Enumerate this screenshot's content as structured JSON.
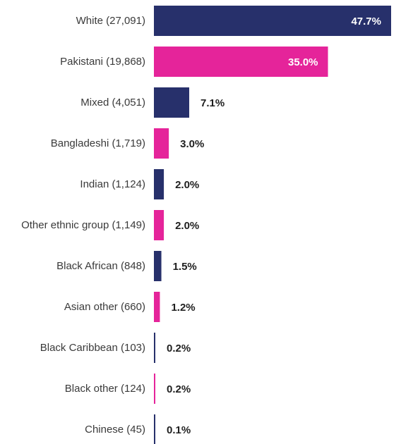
{
  "chart_data": {
    "type": "bar",
    "orientation": "horizontal",
    "categories": [
      "White (27,091)",
      "Pakistani (19,868)",
      "Mixed (4,051)",
      "Bangladeshi (1,719)",
      "Indian (1,124)",
      "Other ethnic group (1,149)",
      "Black African (848)",
      "Asian other (660)",
      "Black Caribbean (103)",
      "Black other (124)",
      "Chinese (45)"
    ],
    "values": [
      47.7,
      35.0,
      7.1,
      3.0,
      2.0,
      2.0,
      1.5,
      1.2,
      0.2,
      0.2,
      0.1
    ],
    "value_labels": [
      "47.7%",
      "35.0%",
      "7.1%",
      "3.0%",
      "2.0%",
      "2.0%",
      "1.5%",
      "1.2%",
      "0.2%",
      "0.2%",
      "0.1%"
    ],
    "bar_colors": [
      "#27306b",
      "#e5249a",
      "#27306b",
      "#e5249a",
      "#27306b",
      "#e5249a",
      "#27306b",
      "#e5249a",
      "#27306b",
      "#e5249a",
      "#27306b"
    ],
    "colors": {
      "navy": "#27306b",
      "magenta": "#e5249a",
      "label_text": "#3a3a3a",
      "value_text_outside": "#1f1f1f",
      "value_text_inside": "#ffffff"
    },
    "title": "",
    "xlabel": "",
    "ylabel": "",
    "xlim": [
      0,
      47.7
    ],
    "grid": false,
    "legend": "none"
  }
}
